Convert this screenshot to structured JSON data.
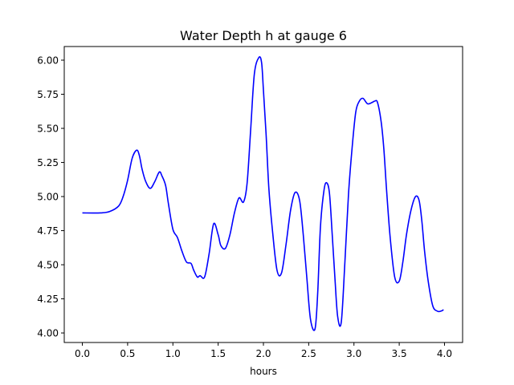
{
  "chart_data": {
    "type": "line",
    "title": "Water Depth h at gauge 6",
    "xlabel": "hours",
    "ylabel": "",
    "xlim": [
      -0.2,
      4.2
    ],
    "ylim": [
      3.93,
      6.1
    ],
    "xticks": [
      0.0,
      0.5,
      1.0,
      1.5,
      2.0,
      2.5,
      3.0,
      3.5,
      4.0
    ],
    "xtick_labels": [
      "0.0",
      "0.5",
      "1.0",
      "1.5",
      "2.0",
      "2.5",
      "3.0",
      "3.5",
      "4.0"
    ],
    "yticks": [
      4.0,
      4.25,
      4.5,
      4.75,
      5.0,
      5.25,
      5.5,
      5.75,
      6.0
    ],
    "ytick_labels": [
      "4.00",
      "4.25",
      "4.50",
      "4.75",
      "5.00",
      "5.25",
      "5.50",
      "5.75",
      "6.00"
    ],
    "grid": false,
    "legend": "none",
    "series": [
      {
        "color": "#0000ff",
        "x": [
          0.0,
          0.2,
          0.3,
          0.4,
          0.45,
          0.5,
          0.55,
          0.6,
          0.63,
          0.66,
          0.7,
          0.75,
          0.8,
          0.85,
          0.88,
          0.92,
          0.95,
          1.0,
          1.05,
          1.1,
          1.15,
          1.2,
          1.23,
          1.27,
          1.3,
          1.35,
          1.4,
          1.45,
          1.5,
          1.53,
          1.58,
          1.63,
          1.68,
          1.73,
          1.78,
          1.82,
          1.86,
          1.9,
          1.95,
          1.98,
          2.0,
          2.03,
          2.06,
          2.1,
          2.15,
          2.2,
          2.25,
          2.3,
          2.35,
          2.4,
          2.44,
          2.48,
          2.52,
          2.57,
          2.6,
          2.63,
          2.67,
          2.7,
          2.73,
          2.76,
          2.79,
          2.82,
          2.86,
          2.9,
          2.94,
          2.98,
          3.02,
          3.06,
          3.1,
          3.15,
          3.2,
          3.23,
          3.26,
          3.3,
          3.33,
          3.36,
          3.4,
          3.45,
          3.5,
          3.54,
          3.58,
          3.63,
          3.68,
          3.72,
          3.75,
          3.78,
          3.82,
          3.87,
          3.92,
          3.96,
          3.99
        ],
        "y": [
          4.88,
          4.88,
          4.89,
          4.93,
          5.0,
          5.12,
          5.28,
          5.34,
          5.3,
          5.2,
          5.11,
          5.06,
          5.11,
          5.18,
          5.15,
          5.08,
          4.95,
          4.76,
          4.7,
          4.6,
          4.52,
          4.51,
          4.46,
          4.41,
          4.42,
          4.41,
          4.58,
          4.8,
          4.72,
          4.64,
          4.62,
          4.72,
          4.88,
          4.99,
          4.96,
          5.1,
          5.5,
          5.9,
          6.02,
          5.98,
          5.78,
          5.45,
          5.06,
          4.75,
          4.46,
          4.44,
          4.65,
          4.9,
          5.03,
          4.97,
          4.72,
          4.4,
          4.1,
          4.03,
          4.3,
          4.78,
          5.05,
          5.1,
          5.02,
          4.72,
          4.4,
          4.12,
          4.08,
          4.52,
          5.02,
          5.36,
          5.62,
          5.7,
          5.72,
          5.68,
          5.69,
          5.7,
          5.69,
          5.55,
          5.35,
          5.05,
          4.7,
          4.41,
          4.38,
          4.52,
          4.72,
          4.9,
          5.0,
          4.97,
          4.82,
          4.6,
          4.38,
          4.2,
          4.16,
          4.16,
          4.17
        ]
      }
    ]
  }
}
